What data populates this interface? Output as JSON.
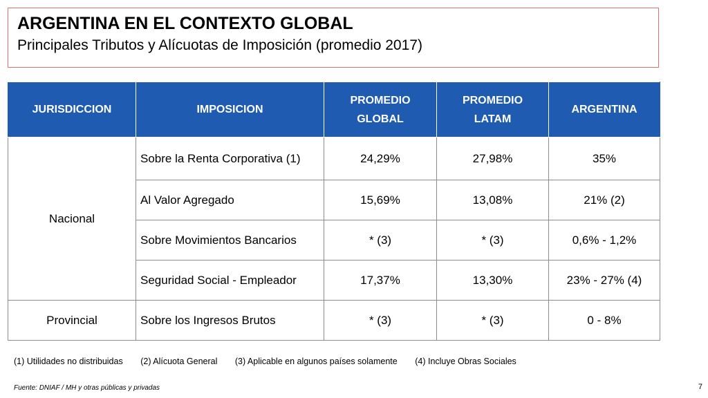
{
  "title": "ARGENTINA EN EL CONTEXTO GLOBAL",
  "subtitle": "Principales Tributos y Alícuotas de Imposición (promedio 2017)",
  "table": {
    "headers": {
      "jurisdiccion": "JURISDICCION",
      "imposicion": "IMPOSICION",
      "promedio_global_1": "PROMEDIO",
      "promedio_global_2": "GLOBAL",
      "promedio_latam_1": "PROMEDIO",
      "promedio_latam_2": "LATAM",
      "argentina": "ARGENTINA"
    },
    "groups": [
      {
        "jurisdiccion": "Nacional",
        "rows": [
          {
            "imposicion": "Sobre la Renta Corporativa (1)",
            "global": "24,29%",
            "latam": "27,98%",
            "argentina": "35%"
          },
          {
            "imposicion": "Al Valor Agregado",
            "global": "15,69%",
            "latam": "13,08%",
            "argentina": "21% (2)"
          },
          {
            "imposicion": "Sobre Movimientos Bancarios",
            "global": "* (3)",
            "latam": "* (3)",
            "argentina": "0,6% - 1,2%"
          },
          {
            "imposicion": "Seguridad Social - Empleador",
            "global": "17,37%",
            "latam": "13,30%",
            "argentina": "23% - 27% (4)"
          }
        ]
      },
      {
        "jurisdiccion": "Provincial",
        "rows": [
          {
            "imposicion": "Sobre los Ingresos Brutos",
            "global": "* (3)",
            "latam": "* (3)",
            "argentina": "0 - 8%"
          }
        ]
      }
    ]
  },
  "footnotes": [
    "(1) Utilidades no distribuidas",
    "(2) Alícuota General",
    "(3) Aplicable en algunos países  solamente",
    "(4) Incluye Obras Sociales"
  ],
  "source": "Fuente: DNIAF / MH y otras públicas y privadas",
  "page_number": "7",
  "colors": {
    "header_bg": "#1f5bb0",
    "header_text": "#ffffff",
    "title_border": "#e07070"
  }
}
